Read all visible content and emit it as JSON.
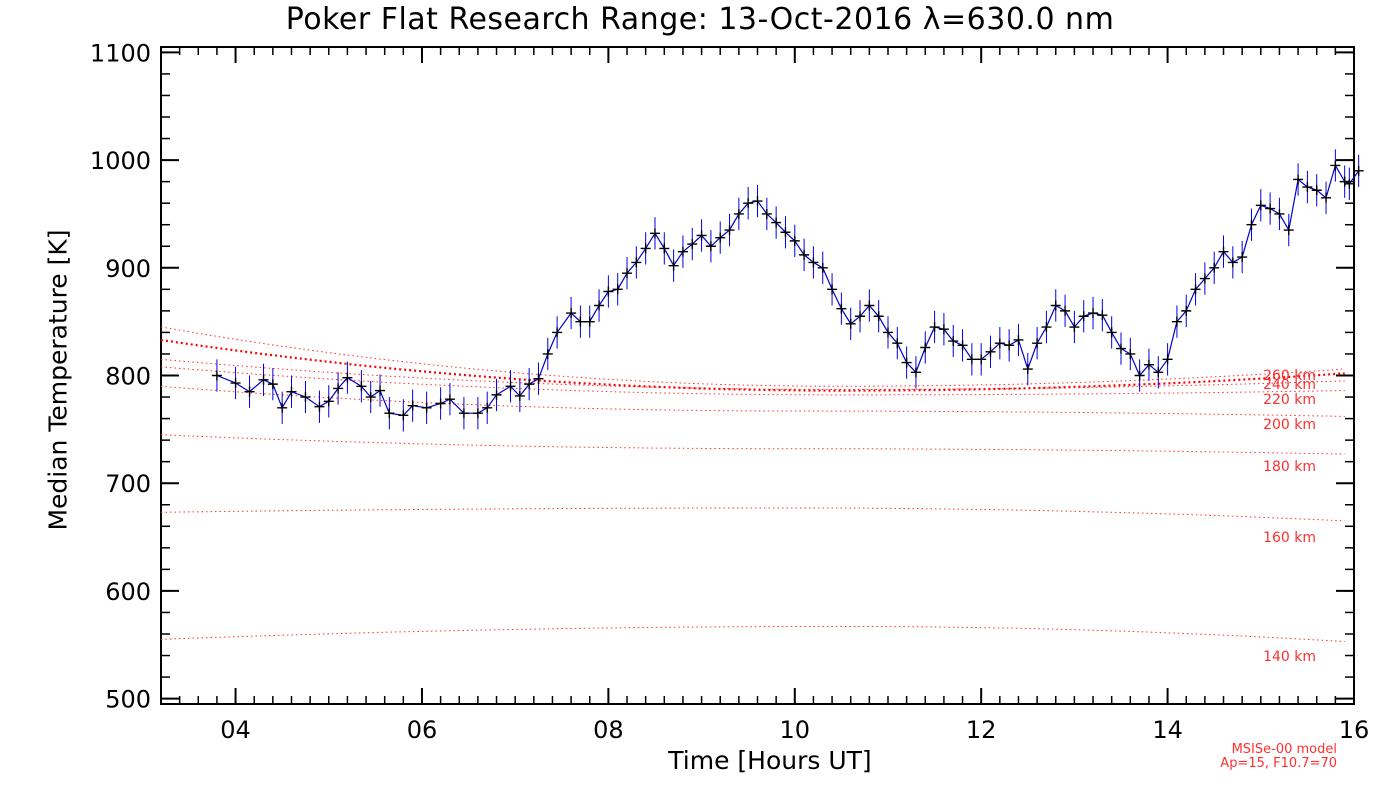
{
  "chart_data": {
    "type": "line",
    "title": "Poker Flat Research Range: 13-Oct-2016 λ=630.0 nm",
    "xlabel": "Time [Hours UT]",
    "ylabel": "Median Temperature [K]",
    "xlim": [
      3.2,
      16
    ],
    "ylim": [
      495,
      1105
    ],
    "x_ticks": [
      {
        "value": 4,
        "label": "04"
      },
      {
        "value": 6,
        "label": "06"
      },
      {
        "value": 8,
        "label": "08"
      },
      {
        "value": 10,
        "label": "10"
      },
      {
        "value": 12,
        "label": "12"
      },
      {
        "value": 14,
        "label": "14"
      },
      {
        "value": 16,
        "label": "16"
      }
    ],
    "y_ticks": [
      {
        "value": 500,
        "label": "500"
      },
      {
        "value": 600,
        "label": "600"
      },
      {
        "value": 700,
        "label": "700"
      },
      {
        "value": 800,
        "label": "800"
      },
      {
        "value": 900,
        "label": "900"
      },
      {
        "value": 1000,
        "label": "1000"
      },
      {
        "value": 1100,
        "label": "1100"
      }
    ],
    "measured_series": {
      "name": "Median temperature",
      "line_color": "#0000c8",
      "errorbar_color": "#0000e6",
      "marker_color": "#000000",
      "points": [
        [
          3.8,
          800
        ],
        [
          4.0,
          793
        ],
        [
          4.15,
          785
        ],
        [
          4.3,
          796
        ],
        [
          4.4,
          792
        ],
        [
          4.5,
          770
        ],
        [
          4.6,
          785
        ],
        [
          4.75,
          780
        ],
        [
          4.9,
          771
        ],
        [
          5.0,
          776
        ],
        [
          5.1,
          788
        ],
        [
          5.2,
          798
        ],
        [
          5.35,
          790
        ],
        [
          5.45,
          780
        ],
        [
          5.55,
          786
        ],
        [
          5.65,
          765
        ],
        [
          5.8,
          763
        ],
        [
          5.9,
          772
        ],
        [
          6.05,
          770
        ],
        [
          6.2,
          774
        ],
        [
          6.3,
          778
        ],
        [
          6.45,
          765
        ],
        [
          6.6,
          765
        ],
        [
          6.7,
          770
        ],
        [
          6.8,
          782
        ],
        [
          6.95,
          790
        ],
        [
          7.05,
          781
        ],
        [
          7.15,
          792
        ],
        [
          7.25,
          797
        ],
        [
          7.35,
          820
        ],
        [
          7.45,
          840
        ],
        [
          7.6,
          858
        ],
        [
          7.7,
          850
        ],
        [
          7.8,
          850
        ],
        [
          7.9,
          865
        ],
        [
          8.0,
          878
        ],
        [
          8.1,
          880
        ],
        [
          8.2,
          895
        ],
        [
          8.3,
          905
        ],
        [
          8.4,
          918
        ],
        [
          8.5,
          932
        ],
        [
          8.6,
          918
        ],
        [
          8.7,
          902
        ],
        [
          8.8,
          915
        ],
        [
          8.9,
          922
        ],
        [
          9.0,
          930
        ],
        [
          9.1,
          920
        ],
        [
          9.2,
          928
        ],
        [
          9.3,
          935
        ],
        [
          9.4,
          950
        ],
        [
          9.5,
          960
        ],
        [
          9.6,
          962
        ],
        [
          9.7,
          950
        ],
        [
          9.8,
          942
        ],
        [
          9.9,
          933
        ],
        [
          10.0,
          925
        ],
        [
          10.1,
          912
        ],
        [
          10.2,
          905
        ],
        [
          10.3,
          900
        ],
        [
          10.4,
          880
        ],
        [
          10.5,
          862
        ],
        [
          10.6,
          848
        ],
        [
          10.7,
          855
        ],
        [
          10.8,
          865
        ],
        [
          10.9,
          855
        ],
        [
          11.0,
          840
        ],
        [
          11.1,
          830
        ],
        [
          11.2,
          812
        ],
        [
          11.3,
          803
        ],
        [
          11.4,
          826
        ],
        [
          11.5,
          845
        ],
        [
          11.6,
          843
        ],
        [
          11.7,
          832
        ],
        [
          11.8,
          828
        ],
        [
          11.9,
          815
        ],
        [
          12.0,
          815
        ],
        [
          12.1,
          822
        ],
        [
          12.2,
          830
        ],
        [
          12.3,
          828
        ],
        [
          12.4,
          833
        ],
        [
          12.5,
          806
        ],
        [
          12.6,
          830
        ],
        [
          12.7,
          845
        ],
        [
          12.8,
          865
        ],
        [
          12.9,
          860
        ],
        [
          13.0,
          845
        ],
        [
          13.1,
          855
        ],
        [
          13.2,
          858
        ],
        [
          13.3,
          856
        ],
        [
          13.4,
          840
        ],
        [
          13.5,
          825
        ],
        [
          13.6,
          820
        ],
        [
          13.7,
          800
        ],
        [
          13.8,
          810
        ],
        [
          13.9,
          803
        ],
        [
          14.0,
          815
        ],
        [
          14.1,
          850
        ],
        [
          14.2,
          860
        ],
        [
          14.3,
          880
        ],
        [
          14.4,
          890
        ],
        [
          14.5,
          900
        ],
        [
          14.6,
          915
        ],
        [
          14.7,
          905
        ],
        [
          14.8,
          910
        ],
        [
          14.9,
          940
        ],
        [
          15.0,
          958
        ],
        [
          15.1,
          955
        ],
        [
          15.2,
          950
        ],
        [
          15.3,
          935
        ],
        [
          15.4,
          982
        ],
        [
          15.5,
          975
        ],
        [
          15.6,
          972
        ],
        [
          15.7,
          965
        ],
        [
          15.8,
          995
        ],
        [
          15.9,
          980
        ],
        [
          15.95,
          978
        ],
        [
          16.05,
          990
        ]
      ],
      "error_half_width_K": 15
    },
    "model_series": [
      {
        "label": "140 km",
        "color": "#ff3030",
        "y_start": 555,
        "y_mid": 567,
        "x_mid": 10.5,
        "y_end": 553
      },
      {
        "label": "160 km",
        "color": "#ff3030",
        "y_start": 673,
        "y_mid": 677,
        "x_mid": 10.0,
        "y_end": 665
      },
      {
        "label": "180 km",
        "color": "#ff3030",
        "y_start": 745,
        "y_mid": 732,
        "x_mid": 10.0,
        "y_end": 727
      },
      {
        "label": "200 km",
        "color": "#ff3030",
        "y_start": 790,
        "y_mid": 767,
        "x_mid": 10.0,
        "y_end": 762
      },
      {
        "label": "220 km",
        "color": "#ff3030",
        "y_start": 808,
        "y_mid": 782,
        "x_mid": 10.5,
        "y_end": 786
      },
      {
        "label": "240 km",
        "color": "#ff3030",
        "y_start": 815,
        "y_mid": 787,
        "x_mid": 10.5,
        "y_end": 795
      },
      {
        "label": "260 km",
        "color": "#ff3030",
        "y_start": 845,
        "y_mid": 790,
        "x_mid": 10.5,
        "y_end": 806
      },
      {
        "label": "",
        "color": "#ff0000",
        "emphasis": true,
        "y_start": 833,
        "y_mid": 786,
        "x_mid": 10.5,
        "y_end": 802
      }
    ],
    "model_note": [
      "MSISe-00 model",
      "Ap=15, F10.7=70"
    ]
  },
  "colors": {
    "axis": "#000000",
    "model": "#ff3030",
    "data_line": "#0000c8",
    "errorbar": "#0000e6"
  }
}
